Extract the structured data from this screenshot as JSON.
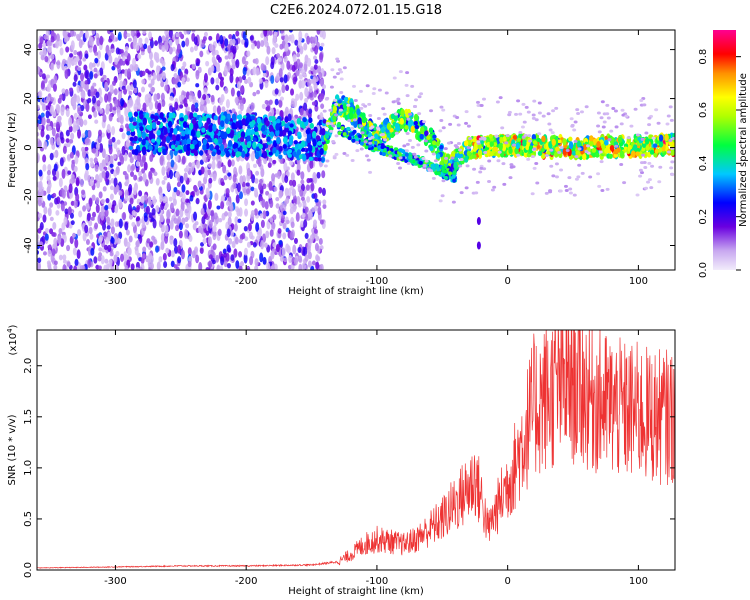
{
  "title": "C2E6.2024.072.01.15.G18",
  "chart_data": [
    {
      "type": "heatmap",
      "xlabel": "Height of straight line (km)",
      "ylabel": "Frequency (Hz)",
      "xlim": [
        -360,
        128
      ],
      "ylim": [
        -50,
        48
      ],
      "xticks": [
        -300,
        -200,
        -100,
        0,
        100
      ],
      "yticks": [
        -40,
        -20,
        0,
        20,
        40
      ],
      "colorbar": {
        "label": "Normalized spectral amplitude",
        "range": [
          0.0,
          0.9
        ],
        "ticks": [
          0.0,
          0.2,
          0.4,
          0.6,
          0.8
        ],
        "colormap": [
          "#e8e0f8",
          "#6a00e0",
          "#0000ff",
          "#00c0ff",
          "#00ff40",
          "#ffff00",
          "#ff9000",
          "#ff0000",
          "#ff0080"
        ]
      },
      "ridge": {
        "description_points": [
          [
            -280,
            6
          ],
          [
            -200,
            5
          ],
          [
            -140,
            3
          ],
          [
            -130,
            18
          ],
          [
            -120,
            15
          ],
          [
            -100,
            4
          ],
          [
            -80,
            12
          ],
          [
            -60,
            5
          ],
          [
            -45,
            -8
          ],
          [
            -30,
            0
          ],
          [
            0,
            1
          ],
          [
            50,
            0
          ],
          [
            128,
            1
          ]
        ],
        "secondary_points": [
          [
            -130,
            8
          ],
          [
            -100,
            0
          ],
          [
            -70,
            -5
          ],
          [
            -50,
            -10
          ],
          [
            -40,
            -12
          ]
        ],
        "spot_points": [
          [
            -22,
            -30
          ],
          [
            -22,
            -40
          ]
        ]
      }
    },
    {
      "type": "line",
      "xlabel": "Height of straight line (km)",
      "ylabel": "SNR (10 * v/v)",
      "y_multiplier": "(x10",
      "y_multiplier_exp": "4",
      "y_multiplier_close": ")",
      "xlim": [
        -360,
        128
      ],
      "ylim": [
        0,
        2.35
      ],
      "xticks": [
        -300,
        -200,
        -100,
        0,
        100
      ],
      "yticks": [
        0.0,
        0.5,
        1.0,
        1.5,
        2.0
      ],
      "color": "#ee3333",
      "envelope": {
        "x": [
          -360,
          -300,
          -250,
          -200,
          -150,
          -130,
          -120,
          -110,
          -100,
          -90,
          -80,
          -70,
          -60,
          -50,
          -40,
          -30,
          -25,
          -20,
          -15,
          -10,
          -5,
          0,
          5,
          10,
          15,
          20,
          30,
          40,
          50,
          60,
          70,
          80,
          90,
          100,
          110,
          128
        ],
        "y": [
          0.02,
          0.03,
          0.04,
          0.04,
          0.05,
          0.08,
          0.15,
          0.25,
          0.3,
          0.28,
          0.25,
          0.3,
          0.4,
          0.5,
          0.65,
          0.8,
          0.9,
          0.7,
          0.4,
          0.55,
          0.7,
          0.85,
          1.0,
          1.2,
          1.4,
          1.6,
          1.7,
          1.8,
          1.85,
          1.75,
          1.65,
          1.6,
          1.55,
          1.55,
          1.5,
          1.5
        ]
      }
    }
  ]
}
